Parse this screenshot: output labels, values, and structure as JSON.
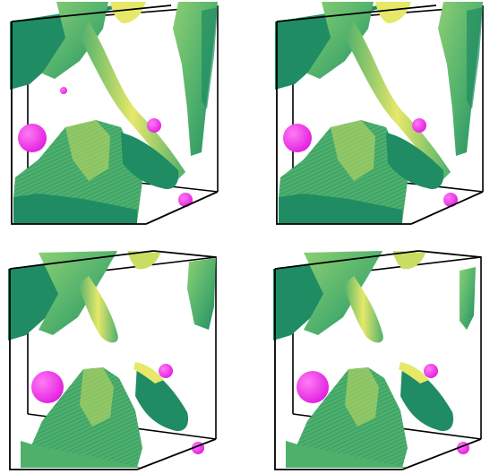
{
  "figure": {
    "panels": [
      {
        "variant": "a"
      },
      {
        "variant": "b"
      },
      {
        "variant": "c"
      },
      {
        "variant": "d"
      }
    ]
  },
  "colors": {
    "background": "#ffffff",
    "surface_dark": "#1f8c63",
    "surface_mid": "#4fb06c",
    "surface_light": "#8ccf73",
    "highlight": "#e6e86a",
    "highlight_soft": "#c9dd63",
    "inclusion": "#e31ee0",
    "inclusion_light": "#ff7cf4",
    "box_edge": "#000000"
  }
}
